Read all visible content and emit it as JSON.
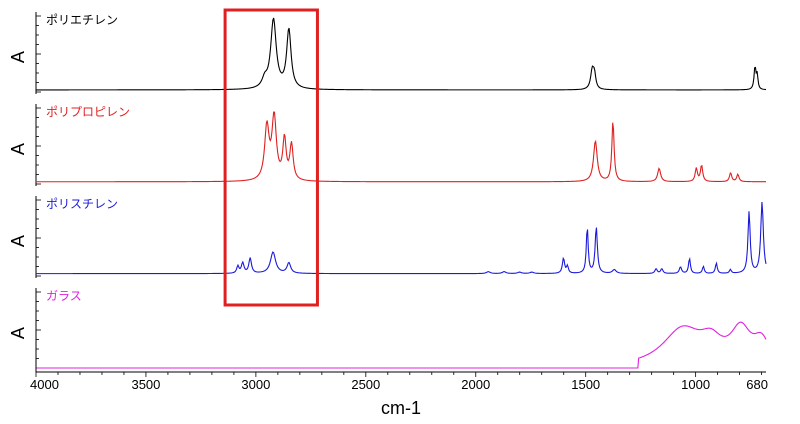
{
  "chart_data": {
    "type": "line",
    "xlabel": "cm-1",
    "x_reversed": true,
    "xlim": [
      4000,
      680
    ],
    "xticks": [
      4000,
      3500,
      3000,
      2500,
      2000,
      1500,
      1000,
      680
    ],
    "xtick_labels": [
      "4000",
      "3500",
      "3000",
      "2500",
      "2000",
      "1500",
      "1000",
      "680"
    ],
    "ylabel": "A",
    "highlight_box": {
      "x_range": [
        3140,
        2720
      ],
      "color": "#e02020"
    },
    "panels": [
      {
        "name": "ポリエチレン",
        "color": "#000000",
        "baseline": 0.03,
        "peaks": [
          [
            2920,
            1.0,
            15
          ],
          [
            2850,
            0.85,
            12
          ],
          [
            2960,
            0.12,
            14
          ],
          [
            1470,
            0.28,
            9
          ],
          [
            1460,
            0.18,
            7
          ],
          [
            730,
            0.33,
            5
          ],
          [
            720,
            0.2,
            4
          ]
        ]
      },
      {
        "name": "ポリプロピレン",
        "color": "#e02020",
        "baseline": 0.03,
        "peaks": [
          [
            2950,
            0.72,
            12
          ],
          [
            2917,
            0.85,
            12
          ],
          [
            2870,
            0.55,
            9
          ],
          [
            2838,
            0.48,
            9
          ],
          [
            1456,
            0.55,
            10
          ],
          [
            1376,
            0.82,
            6
          ],
          [
            1166,
            0.18,
            8
          ],
          [
            997,
            0.18,
            6
          ],
          [
            973,
            0.22,
            6
          ],
          [
            841,
            0.12,
            6
          ],
          [
            808,
            0.1,
            6
          ]
        ]
      },
      {
        "name": "ポリスチレン",
        "color": "#1a1adb",
        "baseline": 0.05,
        "peaks": [
          [
            3082,
            0.15,
            6
          ],
          [
            3060,
            0.22,
            7
          ],
          [
            3026,
            0.32,
            7
          ],
          [
            2922,
            0.45,
            14
          ],
          [
            2850,
            0.22,
            10
          ],
          [
            1943,
            0.04,
            10
          ],
          [
            1871,
            0.04,
            10
          ],
          [
            1801,
            0.03,
            10
          ],
          [
            1745,
            0.03,
            10
          ],
          [
            1601,
            0.32,
            6
          ],
          [
            1583,
            0.15,
            5
          ],
          [
            1493,
            0.98,
            5
          ],
          [
            1452,
            0.98,
            6
          ],
          [
            1370,
            0.08,
            10
          ],
          [
            1180,
            0.1,
            6
          ],
          [
            1154,
            0.1,
            6
          ],
          [
            1069,
            0.14,
            6
          ],
          [
            1028,
            0.32,
            5
          ],
          [
            965,
            0.15,
            5
          ],
          [
            906,
            0.22,
            5
          ],
          [
            842,
            0.08,
            5
          ],
          [
            757,
            1.3,
            6
          ],
          [
            698,
            1.5,
            7
          ]
        ]
      },
      {
        "name": "ガラス",
        "color": "#e020e0",
        "baseline": 0.0,
        "peaks": [
          [
            1060,
            0.5,
            110
          ],
          [
            930,
            0.25,
            60
          ],
          [
            795,
            0.45,
            55
          ],
          [
            700,
            0.3,
            45
          ]
        ],
        "onset": 1260
      }
    ]
  }
}
